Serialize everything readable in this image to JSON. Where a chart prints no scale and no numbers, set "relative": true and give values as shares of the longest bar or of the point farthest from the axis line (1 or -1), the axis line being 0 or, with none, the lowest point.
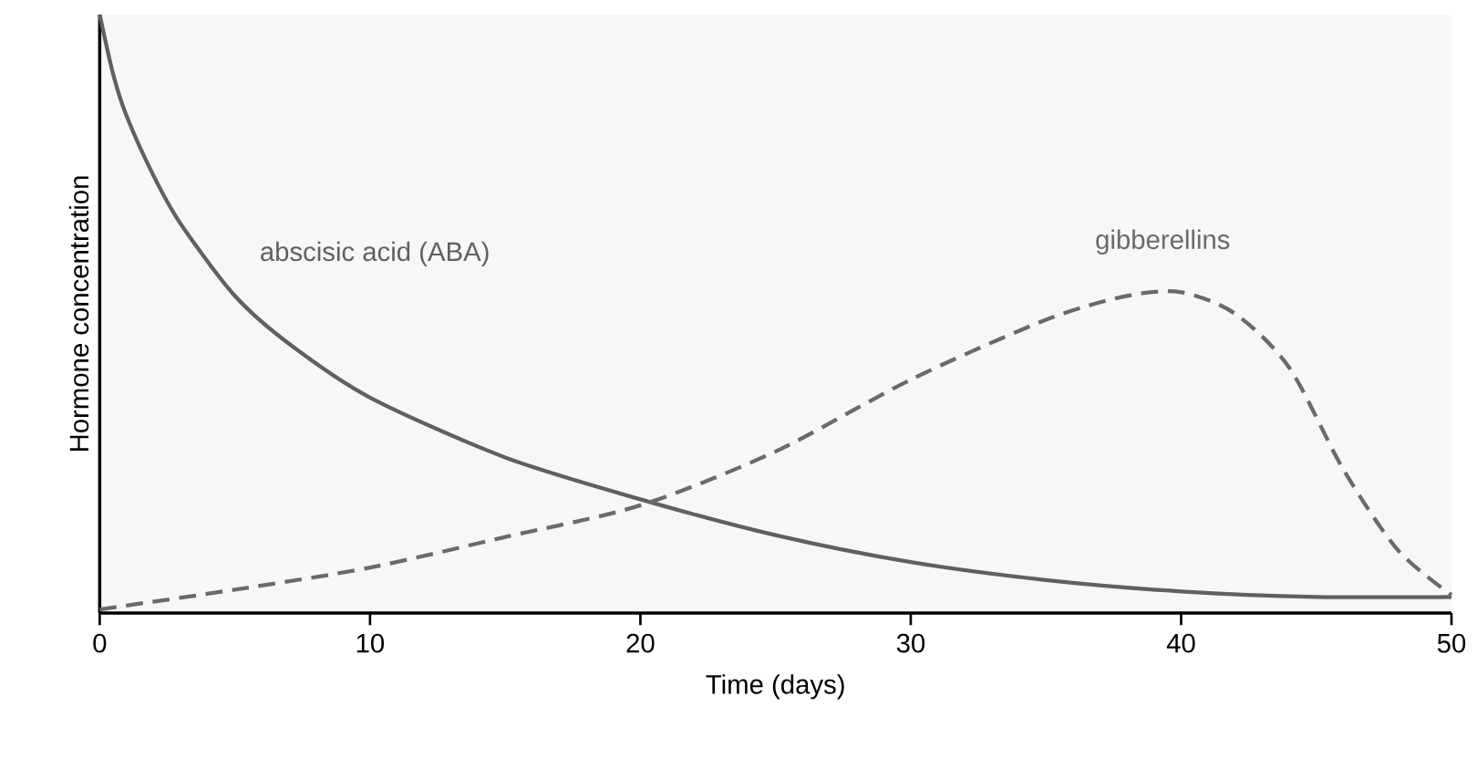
{
  "chart_data": {
    "type": "line",
    "relative": true,
    "xlabel": "Time (days)",
    "ylabel": "Hormone concentration",
    "xlim": [
      0,
      50
    ],
    "xticks": [
      0,
      10,
      20,
      30,
      40,
      50
    ],
    "grid": false,
    "series": [
      {
        "name": "abscisic acid (ABA)",
        "color": "#606060",
        "line_style": "solid",
        "x": [
          0,
          0.5,
          1,
          2,
          3,
          5,
          7,
          10,
          15,
          20,
          25,
          30,
          35,
          40,
          45,
          50
        ],
        "values": [
          1.0,
          0.9,
          0.83,
          0.73,
          0.65,
          0.53,
          0.45,
          0.36,
          0.26,
          0.19,
          0.13,
          0.085,
          0.055,
          0.036,
          0.027,
          0.027
        ]
      },
      {
        "name": "gibberellins",
        "color": "#6a6a6a",
        "line_style": "dashed",
        "x": [
          0,
          5,
          10,
          15,
          20,
          25,
          30,
          35,
          38,
          40,
          42,
          44,
          46,
          48,
          50
        ],
        "values": [
          0.006,
          0.039,
          0.076,
          0.127,
          0.18,
          0.27,
          0.39,
          0.49,
          0.53,
          0.536,
          0.5,
          0.41,
          0.24,
          0.106,
          0.03
        ]
      }
    ]
  }
}
